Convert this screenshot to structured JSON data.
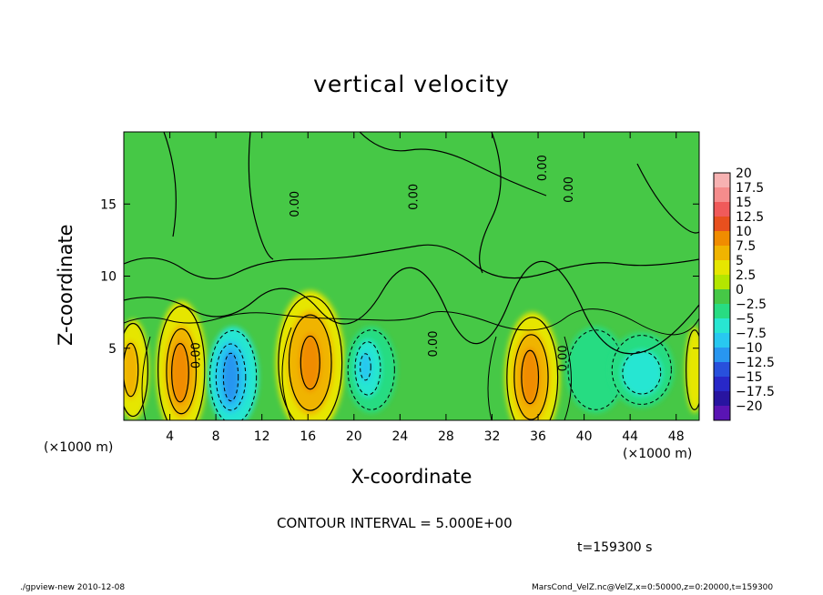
{
  "chart_data": {
    "type": "heatmap",
    "title": "vertical velocity",
    "xlabel": "X-coordinate",
    "ylabel": "Z-coordinate",
    "x_unit_label": "(×1000 m)",
    "x_unit_label_right": "(×1000 m)",
    "xlim": [
      0,
      50
    ],
    "ylim": [
      0,
      20
    ],
    "x_ticks": [
      4,
      8,
      12,
      16,
      20,
      24,
      28,
      32,
      36,
      40,
      44,
      48
    ],
    "y_ticks": [
      5,
      10,
      15
    ],
    "colorbar": {
      "levels": [
        "20",
        "17.5",
        "15",
        "12.5",
        "10",
        "7.5",
        "5",
        "2.5",
        "0",
        "−2.5",
        "−5",
        "−7.5",
        "−10",
        "−12.5",
        "−15",
        "−17.5",
        "−20"
      ],
      "colors": [
        "#f7b2b2",
        "#f58c8c",
        "#f05a5a",
        "#e8501e",
        "#f08c00",
        "#f0b400",
        "#e6e600",
        "#b4e600",
        "#46c846",
        "#28dc82",
        "#28e6d2",
        "#28c8f0",
        "#2896f0",
        "#2850dc",
        "#2828c8",
        "#2814a0",
        "#5a14b4"
      ]
    },
    "cells": [
      {
        "x": 0.8,
        "z": 3.5,
        "rx": 1.4,
        "rz": 3.5,
        "level": 5
      },
      {
        "x": 0.6,
        "z": 3.5,
        "rx": 0.7,
        "rz": 2.0,
        "level": 7.5
      },
      {
        "x": 5.0,
        "z": 3.5,
        "rx": 2.2,
        "rz": 4.8,
        "level": 5
      },
      {
        "x": 5.0,
        "z": 3.4,
        "rx": 1.4,
        "rz": 3.2,
        "level": 7.5
      },
      {
        "x": 4.9,
        "z": 3.3,
        "rx": 0.8,
        "rz": 2.2,
        "level": 10
      },
      {
        "x": 9.5,
        "z": 3.0,
        "rx": 2.2,
        "rz": 3.5,
        "level": -5
      },
      {
        "x": 9.3,
        "z": 3.0,
        "rx": 1.4,
        "rz": 2.5,
        "level": -7.5
      },
      {
        "x": 9.3,
        "z": 3.0,
        "rx": 0.7,
        "rz": 1.8,
        "level": -10
      },
      {
        "x": 16.2,
        "z": 4.0,
        "rx": 3.0,
        "rz": 5.0,
        "level": 5
      },
      {
        "x": 16.2,
        "z": 4.0,
        "rx": 2.0,
        "rz": 3.6,
        "level": 7.5
      },
      {
        "x": 16.2,
        "z": 4.0,
        "rx": 0.9,
        "rz": 2.0,
        "level": 10
      },
      {
        "x": 21.5,
        "z": 3.5,
        "rx": 2.2,
        "rz": 3.0,
        "level": -2.5
      },
      {
        "x": 21.2,
        "z": 3.6,
        "rx": 1.2,
        "rz": 2.0,
        "level": -5
      },
      {
        "x": 21.0,
        "z": 3.7,
        "rx": 0.5,
        "rz": 1.0,
        "level": -7.5
      },
      {
        "x": 35.5,
        "z": 3.0,
        "rx": 2.4,
        "rz": 4.5,
        "level": 5
      },
      {
        "x": 35.4,
        "z": 3.0,
        "rx": 1.6,
        "rz": 3.2,
        "level": 7.5
      },
      {
        "x": 35.3,
        "z": 3.0,
        "rx": 0.8,
        "rz": 2.0,
        "level": 10
      },
      {
        "x": 41.0,
        "z": 3.5,
        "rx": 2.6,
        "rz": 3.0,
        "level": -2.5
      },
      {
        "x": 45.0,
        "z": 3.5,
        "rx": 2.8,
        "rz": 2.6,
        "level": -2.5
      },
      {
        "x": 45.0,
        "z": 3.3,
        "rx": 1.8,
        "rz": 1.6,
        "level": -5
      },
      {
        "x": 49.6,
        "z": 3.5,
        "rx": 0.8,
        "rz": 3.0,
        "level": 5
      }
    ],
    "contour_labels": [
      {
        "x": 6.6,
        "z": 4.5,
        "text": "0.00"
      },
      {
        "x": 15.2,
        "z": 15.0,
        "text": "0.00"
      },
      {
        "x": 25.5,
        "z": 15.5,
        "text": "0.00"
      },
      {
        "x": 27.2,
        "z": 5.3,
        "text": "0.00"
      },
      {
        "x": 36.7,
        "z": 17.5,
        "text": "0.00"
      },
      {
        "x": 39.0,
        "z": 16.0,
        "text": "0.00"
      },
      {
        "x": 38.5,
        "z": 4.3,
        "text": "0.00"
      }
    ]
  },
  "notes": {
    "contour_interval": "CONTOUR INTERVAL = 5.000E+00",
    "time": "t=159300 s",
    "footer_left": "./gpview-new   2010-12-08",
    "footer_right": "MarsCond_VelZ.nc@VelZ,x=0:50000,z=0:20000,t=159300"
  }
}
